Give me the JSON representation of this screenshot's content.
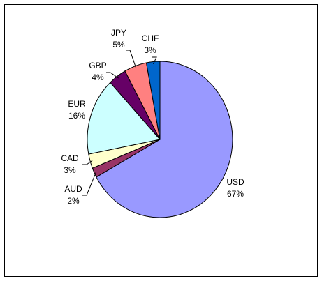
{
  "chart_data": {
    "type": "pie",
    "categories": [
      "USD",
      "AUD",
      "CAD",
      "EUR",
      "GBP",
      "JPY",
      "CHF"
    ],
    "values": [
      67,
      2,
      3,
      16,
      4,
      5,
      3
    ],
    "value_labels": [
      "67%",
      "2%",
      "3%",
      "16%",
      "4%",
      "5%",
      "3%"
    ],
    "colors": [
      "#9999ff",
      "#993366",
      "#ffffcc",
      "#ccffff",
      "#660066",
      "#ff8080",
      "#0066cc"
    ]
  }
}
